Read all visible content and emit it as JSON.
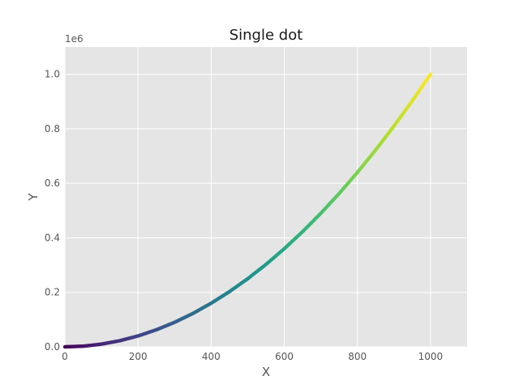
{
  "chart_data": {
    "type": "scatter",
    "title": "Single dot",
    "xlabel": "X",
    "ylabel": "Y",
    "offset_text": "1e6",
    "xlim": [
      0,
      1100
    ],
    "ylim": [
      0,
      1100000
    ],
    "x_ticks": [
      0,
      200,
      400,
      600,
      800,
      1000
    ],
    "x_tick_labels": [
      "0",
      "200",
      "400",
      "600",
      "800",
      "1000"
    ],
    "y_ticks": [
      0,
      200000,
      400000,
      600000,
      800000,
      1000000
    ],
    "y_tick_labels": [
      "0.0",
      "0.2",
      "0.4",
      "0.6",
      "0.8",
      "1.0"
    ],
    "grid": true,
    "background": "#e5e5e5",
    "grid_color": "#ffffff",
    "colormap": "viridis",
    "colormap_stops": [
      "#440154",
      "#482878",
      "#3e4989",
      "#31688e",
      "#26828e",
      "#1f9e89",
      "#35b779",
      "#6ece58",
      "#b5de2b",
      "#fde725"
    ],
    "series": [
      {
        "x": [
          0,
          50,
          100,
          150,
          200,
          250,
          300,
          350,
          400,
          450,
          500,
          550,
          600,
          650,
          700,
          750,
          800,
          850,
          900,
          950,
          1000
        ],
        "y": [
          0,
          2500,
          10000,
          22500,
          40000,
          62500,
          90000,
          122500,
          160000,
          202500,
          250000,
          302500,
          360000,
          422500,
          490000,
          562500,
          640000,
          722500,
          810000,
          902500,
          1000000
        ]
      }
    ]
  }
}
